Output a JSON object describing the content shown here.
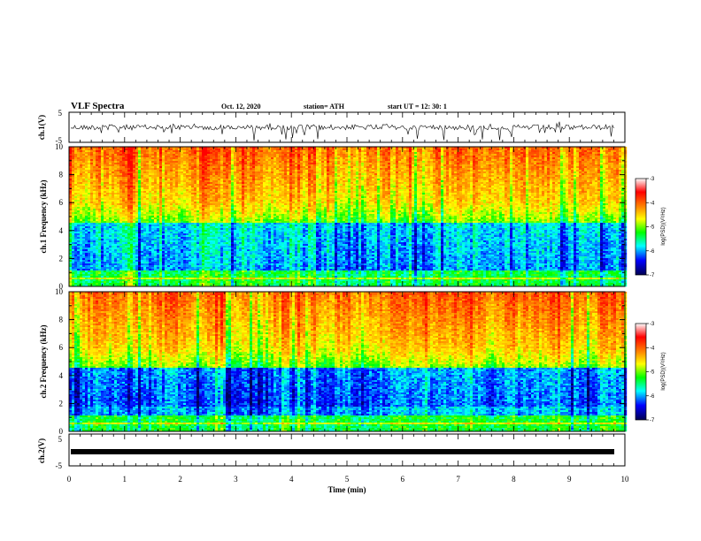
{
  "header": {
    "title": "VLF Spectra",
    "date": "Oct. 12, 2020",
    "station": "station= ATH",
    "start": "start UT =   12: 30: 1"
  },
  "colorbar": {
    "label": "log(PSD)(V²/Hz)",
    "ticks": [
      "-3",
      "-4",
      "-5",
      "-6",
      "-7"
    ],
    "colors": [
      "#ff0000",
      "#ff8c00",
      "#ffff00",
      "#00ff00",
      "#00ffff",
      "#0000ff",
      "#000080"
    ]
  },
  "chart_data": [
    {
      "type": "line",
      "ylabel": "ch.1(V)",
      "ylim": [
        -5,
        5
      ],
      "yticks": [
        "5",
        "-5"
      ],
      "note": "broadband time-series trace"
    },
    {
      "type": "heatmap",
      "ylabel": "ch.1 Frequency (kHz)",
      "ylim": [
        0,
        10
      ],
      "yticks": [
        "0",
        "2",
        "4",
        "6",
        "8",
        "10"
      ],
      "zlim": [
        -7,
        -3
      ]
    },
    {
      "type": "heatmap",
      "ylabel": "ch.2 Frequency (kHz)",
      "ylim": [
        0,
        10
      ],
      "yticks": [
        "0",
        "2",
        "4",
        "6",
        "8",
        "10"
      ],
      "zlim": [
        -7,
        -3
      ]
    },
    {
      "type": "line",
      "ylabel": "ch.2(V)",
      "ylim": [
        -5,
        5
      ],
      "yticks": [
        "5",
        "-5"
      ],
      "xlabel": "Time (min)",
      "xlim": [
        0,
        10
      ],
      "xticks": [
        "0",
        "1",
        "2",
        "3",
        "4",
        "5",
        "6",
        "7",
        "8",
        "9",
        "10"
      ]
    }
  ]
}
